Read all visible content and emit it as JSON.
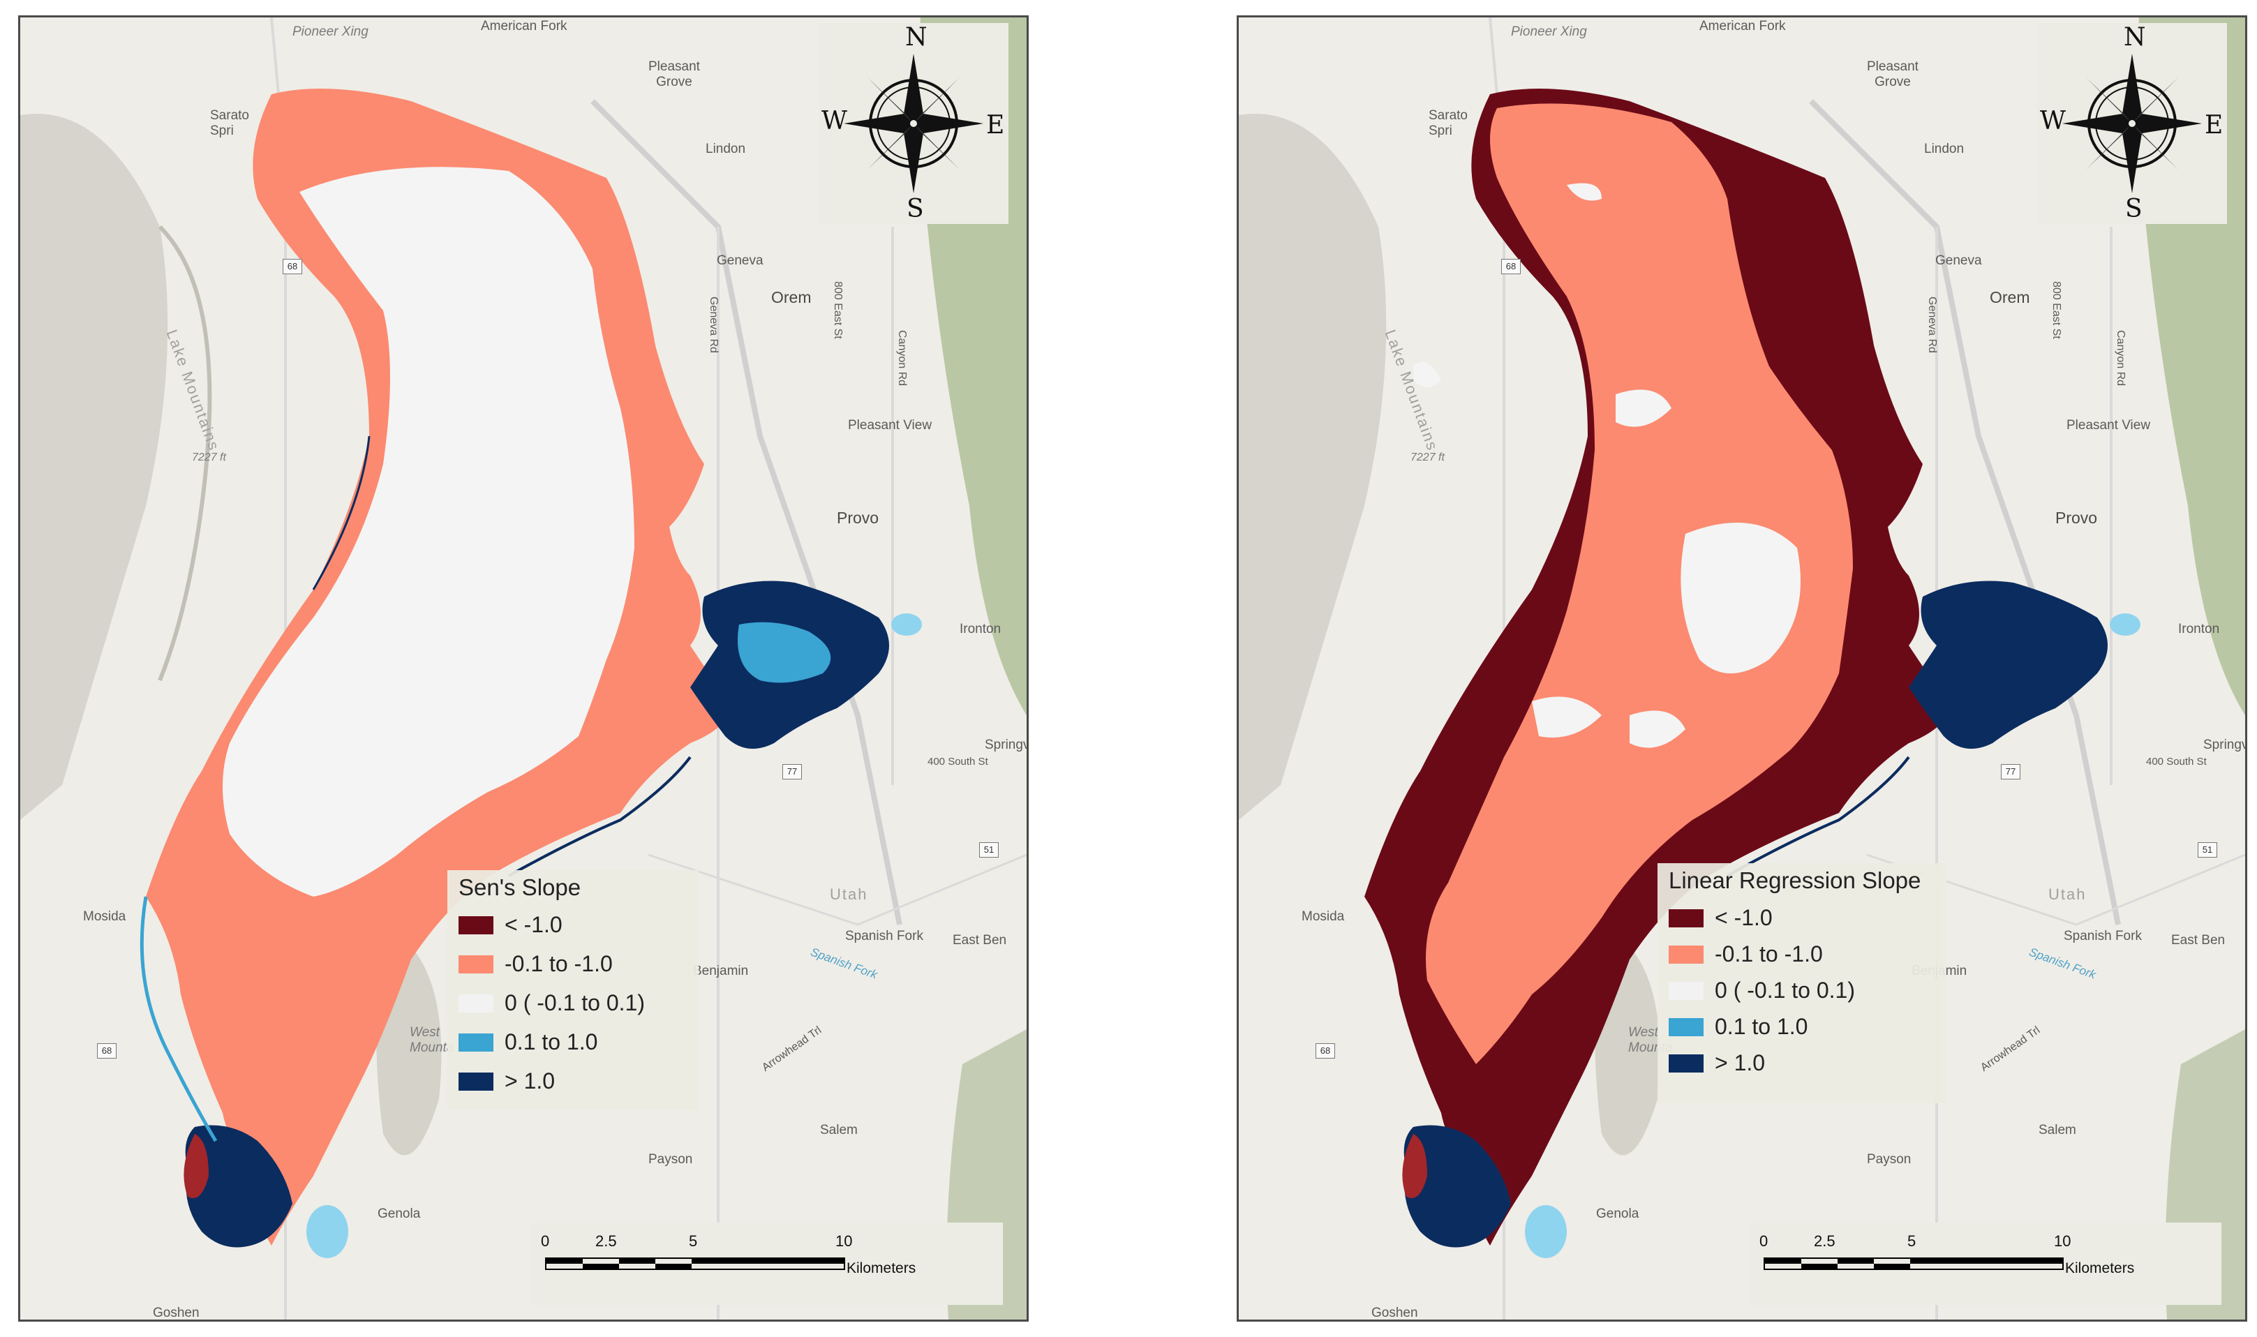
{
  "maps": [
    {
      "legend": {
        "title": "Sen's Slope",
        "items": [
          {
            "label": "< -1.0",
            "color": "#6b0a17"
          },
          {
            "label": "-0.1 to -1.0",
            "color": "#fb8a70"
          },
          {
            "label": "0 ( -0.1 to 0.1)",
            "color": "#f2f2f2"
          },
          {
            "label": "0.1 to  1.0",
            "color": "#3aa4d2"
          },
          {
            "label": "> 1.0",
            "color": "#0b2c5f"
          }
        ]
      }
    },
    {
      "legend": {
        "title": "Linear Regression Slope",
        "items": [
          {
            "label": "< -1.0",
            "color": "#6b0a17"
          },
          {
            "label": "-0.1 to -1.0",
            "color": "#fb8a70"
          },
          {
            "label": "0 ( -0.1 to 0.1)",
            "color": "#f2f2f2"
          },
          {
            "label": "0.1 to  1.0",
            "color": "#3aa4d2"
          },
          {
            "label": "> 1.0",
            "color": "#0b2c5f"
          }
        ]
      }
    }
  ],
  "compass": {
    "n": "N",
    "s": "S",
    "e": "E",
    "w": "W"
  },
  "scalebar": {
    "ticks": [
      "0",
      "2.5",
      "5",
      "10"
    ],
    "units": "Kilometers"
  },
  "places": {
    "pioneer_xing": "Pioneer Xing",
    "american_fork": "American Fork",
    "pleasant_grove": "Pleasant\nGrove",
    "saratoga_springs": "Sarato\nSpri",
    "lindon": "Lindon",
    "geneva": "Geneva",
    "orem": "Orem",
    "geneva_rd": "Geneva Rd",
    "east_st": "800 East St",
    "canyon_rd": "Canyon Rd",
    "lake_mountains": "Lake Mountains",
    "elevation": "7227 ft",
    "pleasant_view": "Pleasant View",
    "provo": "Provo",
    "ironton": "Ironton",
    "springville": "Springv",
    "south_st": "400 South St",
    "mosida": "Mosida",
    "utah": "Utah",
    "spanish_fork": "Spanish Fork",
    "east_bench": "East Ben",
    "benjamin": "Benjamin",
    "spanish_fork_river": "Spanish Fork",
    "west_mountain": "West\nMounta",
    "arrowhead_trl": "Arrowhead Trl",
    "salem": "Salem",
    "payson": "Payson",
    "genola": "Genola",
    "goshen": "Goshen",
    "route_68": "68",
    "route_77": "77",
    "route_51": "51"
  },
  "colors": {
    "basemap": "#efede7",
    "terrain": "#c9c8bf",
    "green_hills": "#b6c6a2",
    "road": "#d8d8d8",
    "water_blue": "#8fd4ef"
  }
}
